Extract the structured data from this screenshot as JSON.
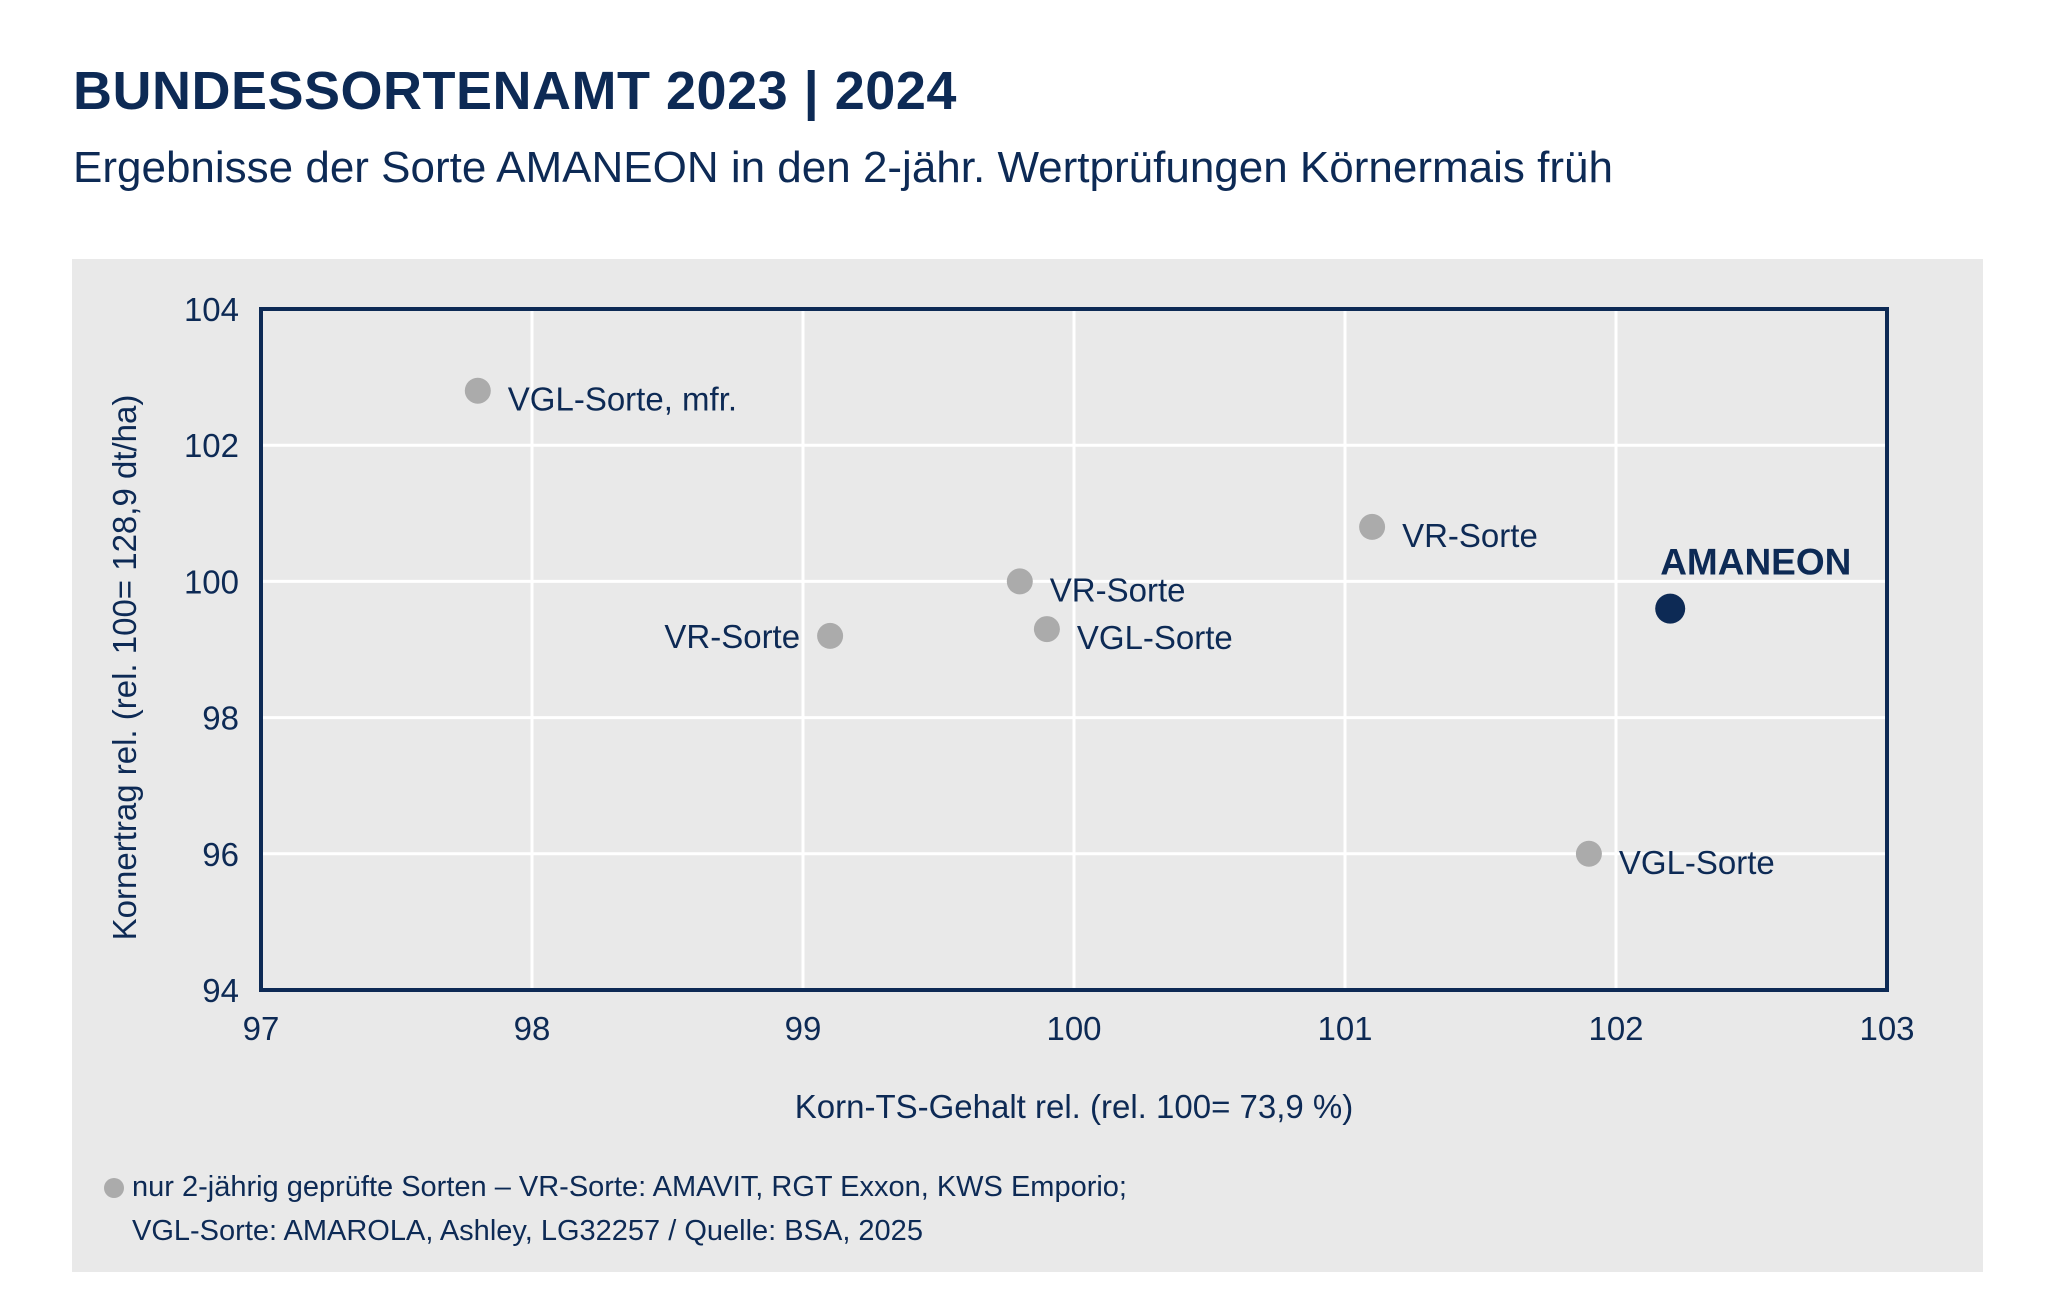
{
  "header": {
    "title": "BUNDESSORTENAMT 2023 | 2024",
    "subtitle": "Ergebnisse der Sorte AMANEON in den 2-jähr. Wertprüfungen Körnermais früh"
  },
  "chart_data": {
    "type": "scatter",
    "xlabel": "Korn-TS-Gehalt rel. (rel. 100= 73,9 %)",
    "ylabel": "Kornertrag rel. (rel. 100= 128,9 dt/ha)",
    "xlim": [
      97,
      103
    ],
    "ylim": [
      94,
      104
    ],
    "xticks": [
      97,
      98,
      99,
      100,
      101,
      102,
      103
    ],
    "yticks": [
      94,
      96,
      98,
      100,
      102,
      104
    ],
    "grid": true,
    "points": [
      {
        "label": "VGL-Sorte, mfr.",
        "x": 97.8,
        "y": 102.8,
        "highlight": false,
        "label_side": "right"
      },
      {
        "label": "VR-Sorte",
        "x": 99.1,
        "y": 99.2,
        "highlight": false,
        "label_side": "left"
      },
      {
        "label": "VR-Sorte",
        "x": 99.8,
        "y": 100.0,
        "highlight": false,
        "label_side": "right"
      },
      {
        "label": "VGL-Sorte",
        "x": 99.9,
        "y": 99.3,
        "highlight": false,
        "label_side": "right"
      },
      {
        "label": "VR-Sorte",
        "x": 101.1,
        "y": 100.8,
        "highlight": false,
        "label_side": "right"
      },
      {
        "label": "AMANEON",
        "x": 102.2,
        "y": 99.6,
        "highlight": true,
        "label_side": "above"
      },
      {
        "label": "VGL-Sorte",
        "x": 101.9,
        "y": 96.0,
        "highlight": false,
        "label_side": "right"
      }
    ],
    "colors": {
      "point": "#ababab",
      "highlight": "#0d2a55",
      "axis": "#0d2a55",
      "grid": "#ffffff",
      "panel": "#e9e9e9"
    }
  },
  "footnote": {
    "line1": "nur 2-jährig geprüfte Sorten – VR-Sorte: AMAVIT, RGT Exxon, KWS Emporio;",
    "line2": "VGL-Sorte: AMAROLA, Ashley, LG32257 / Quelle: BSA, 2025"
  }
}
